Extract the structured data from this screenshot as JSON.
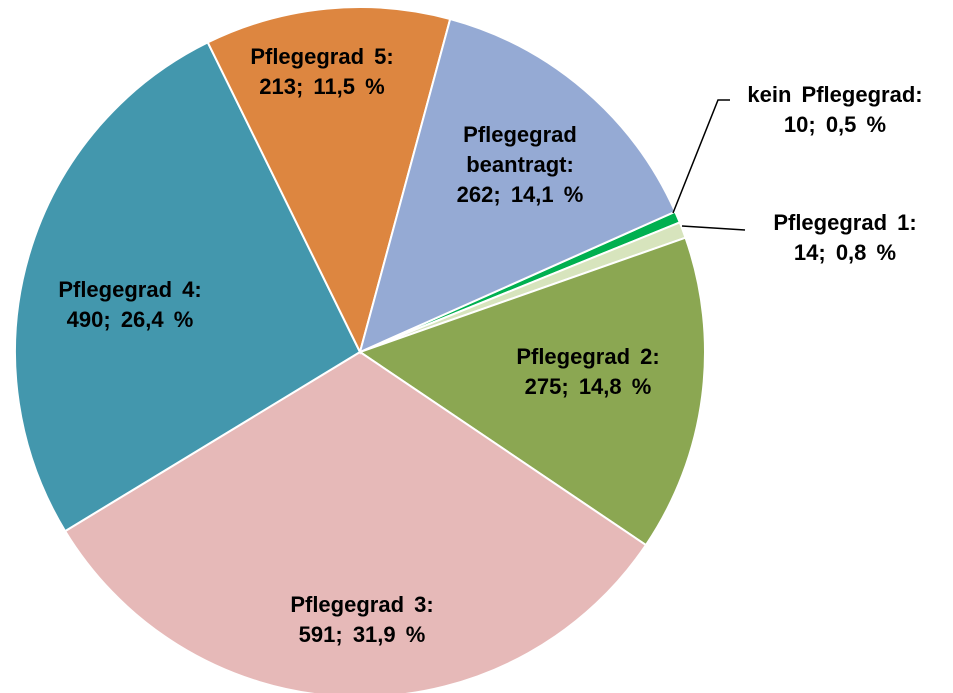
{
  "chart_data": {
    "type": "pie",
    "categories": [
      "kein Pflegegrad:",
      "Pflegegrad 1:",
      "Pflegegrad 2:",
      "Pflegegrad 3:",
      "Pflegegrad 4:",
      "Pflegegrad 5:",
      "Pflegegrad beantragt:"
    ],
    "values": [
      10,
      14,
      275,
      591,
      490,
      213,
      262
    ],
    "value_labels": [
      "10; 0,5 %",
      "14; 0,8 %",
      "275; 14,8 %",
      "591; 31,9 %",
      "490; 26,4 %",
      "213; 11,5 %",
      "262; 14,1 %"
    ],
    "colors": [
      "#00b050",
      "#d7e4bd",
      "#8ba752",
      "#e6b9b8",
      "#4397ad",
      "#dd8640",
      "#95aad4"
    ]
  }
}
